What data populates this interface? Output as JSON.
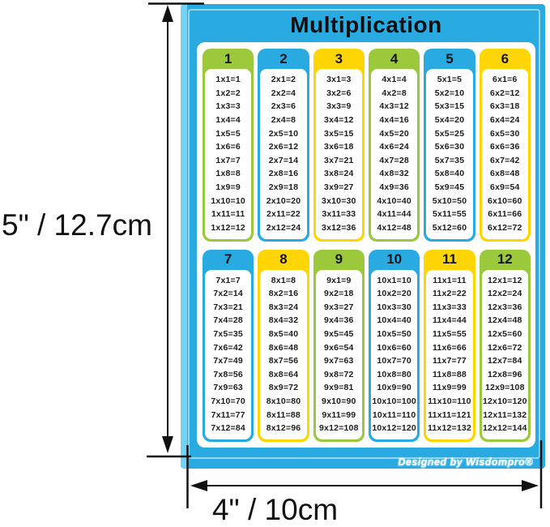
{
  "title": "Multiplication",
  "brand": "Designed by Wisdompro®",
  "dimensions": {
    "height_label": "5\" / 12.7cm",
    "width_label": "4\" / 10cm"
  },
  "colors": {
    "poster_blue": "#29ABE2",
    "pinstripe_light_blue": "#74D2F2",
    "green": "#9CC93C",
    "blue": "#29ABE2",
    "yellow": "#FFD503",
    "text_black": "#1C1C1C",
    "panel_white": "#FFFFFF"
  },
  "columns": [
    {
      "number": "1",
      "color": "green",
      "equations": [
        "1x1=1",
        "1x2=2",
        "1x3=3",
        "1x4=4",
        "1x5=5",
        "1x6=6",
        "1x7=7",
        "1x8=8",
        "1x9=9",
        "1x10=10",
        "1x11=11",
        "1x12=12"
      ]
    },
    {
      "number": "2",
      "color": "blue",
      "equations": [
        "2x1=2",
        "2x2=4",
        "2x3=6",
        "2x4=8",
        "2x5=10",
        "2x6=12",
        "2x7=14",
        "2x8=16",
        "2x9=18",
        "2x10=20",
        "2x11=22",
        "2x12=24"
      ]
    },
    {
      "number": "3",
      "color": "yellow",
      "equations": [
        "3x1=3",
        "3x2=6",
        "3x3=9",
        "3x4=12",
        "3x5=15",
        "3x6=18",
        "3x7=21",
        "3x8=24",
        "3x9=27",
        "3x10=30",
        "3x11=33",
        "3x12=36"
      ]
    },
    {
      "number": "4",
      "color": "green",
      "equations": [
        "4x1=4",
        "4x2=8",
        "4x3=12",
        "4x4=16",
        "4x5=20",
        "4x6=24",
        "4x7=28",
        "4x8=32",
        "4x9=36",
        "4x10=40",
        "4x11=44",
        "4x12=48"
      ]
    },
    {
      "number": "5",
      "color": "blue",
      "equations": [
        "5x1=5",
        "5x2=10",
        "5x3=15",
        "5x4=20",
        "5x5=25",
        "5x6=30",
        "5x7=35",
        "5x8=40",
        "5x9=45",
        "5x10=50",
        "5x11=55",
        "5x12=60"
      ]
    },
    {
      "number": "6",
      "color": "yellow",
      "equations": [
        "6x1=6",
        "6x2=12",
        "6x3=18",
        "6x4=24",
        "6x5=30",
        "6x6=36",
        "6x7=42",
        "6x8=48",
        "6x9=54",
        "6x10=60",
        "6x11=66",
        "6x12=72"
      ]
    },
    {
      "number": "7",
      "color": "blue",
      "equations": [
        "7x1=7",
        "7x2=14",
        "7x3=21",
        "7x4=28",
        "7x5=35",
        "7x6=42",
        "7x7=49",
        "7x8=56",
        "7x9=63",
        "7x10=70",
        "7x11=77",
        "7x12=84"
      ]
    },
    {
      "number": "8",
      "color": "yellow",
      "equations": [
        "8x1=8",
        "8x2=16",
        "8x3=24",
        "8x4=32",
        "8x5=40",
        "8x6=48",
        "8x7=56",
        "8x8=64",
        "8x9=72",
        "8x10=80",
        "8x11=88",
        "8x12=96"
      ]
    },
    {
      "number": "9",
      "color": "green",
      "equations": [
        "9x1=9",
        "9x2=18",
        "9x3=27",
        "9x4=36",
        "9x5=45",
        "9x6=54",
        "9x7=63",
        "9x8=72",
        "9x9=81",
        "9x10=90",
        "9x11=99",
        "9x12=108"
      ]
    },
    {
      "number": "10",
      "color": "blue",
      "equations": [
        "10x1=10",
        "10x2=20",
        "10x3=30",
        "10x4=40",
        "10x5=50",
        "10x6=60",
        "10x7=70",
        "10x8=80",
        "10x9=90",
        "10x10=100",
        "10x11=110",
        "10x12=120"
      ]
    },
    {
      "number": "11",
      "color": "yellow",
      "equations": [
        "11x1=11",
        "11x2=22",
        "11x3=33",
        "11x4=44",
        "11x5=55",
        "11x6=66",
        "11x7=77",
        "11x8=88",
        "11x9=99",
        "11x10=110",
        "11x11=121",
        "11x12=132"
      ]
    },
    {
      "number": "12",
      "color": "green",
      "equations": [
        "12x1=12",
        "12x2=24",
        "12x3=36",
        "12x4=48",
        "12x5=60",
        "12x6=72",
        "12x7=84",
        "12x8=96",
        "12x9=108",
        "12x10=120",
        "12x11=132",
        "12x12=144"
      ]
    }
  ]
}
